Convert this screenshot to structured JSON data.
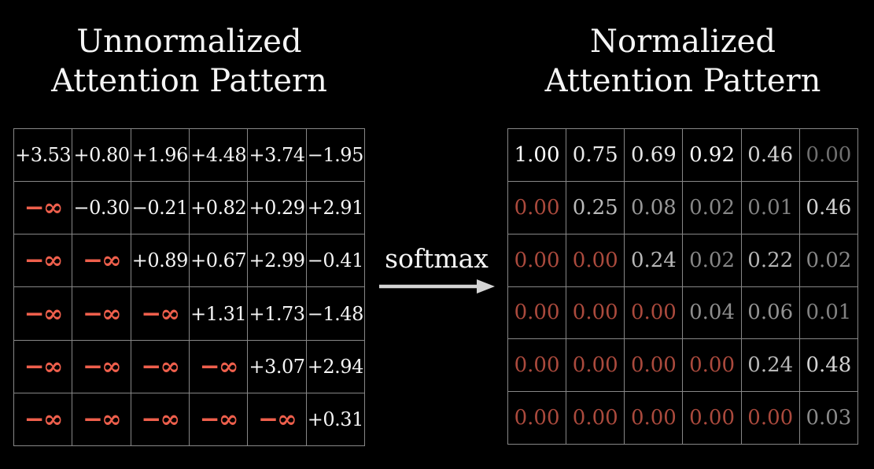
{
  "colors": {
    "background": "#000000",
    "value_text": "#f5f5f5",
    "neg_infinity_red": "#ee5f4c",
    "masked_zero_red": "#ab4a3d",
    "grid_line": "#878787",
    "arrow": "#d4d4d4"
  },
  "left_panel": {
    "title_line1": "Unnormalized",
    "title_line2": "Attention Pattern",
    "matrix": [
      [
        {
          "t": "+3.53",
          "c": "#f5f5f5"
        },
        {
          "t": "+0.80",
          "c": "#f5f5f5"
        },
        {
          "t": "+1.96",
          "c": "#f5f5f5"
        },
        {
          "t": "+4.48",
          "c": "#f5f5f5"
        },
        {
          "t": "+3.74",
          "c": "#f5f5f5"
        },
        {
          "t": "−1.95",
          "c": "#f5f5f5"
        }
      ],
      [
        {
          "t": "−∞",
          "c": "#ee5f4c",
          "inf": true
        },
        {
          "t": "−0.30",
          "c": "#f5f5f5"
        },
        {
          "t": "−0.21",
          "c": "#f5f5f5"
        },
        {
          "t": "+0.82",
          "c": "#f5f5f5"
        },
        {
          "t": "+0.29",
          "c": "#f5f5f5"
        },
        {
          "t": "+2.91",
          "c": "#f5f5f5"
        }
      ],
      [
        {
          "t": "−∞",
          "c": "#ee5f4c",
          "inf": true
        },
        {
          "t": "−∞",
          "c": "#ee5f4c",
          "inf": true
        },
        {
          "t": "+0.89",
          "c": "#f5f5f5"
        },
        {
          "t": "+0.67",
          "c": "#f5f5f5"
        },
        {
          "t": "+2.99",
          "c": "#f5f5f5"
        },
        {
          "t": "−0.41",
          "c": "#f5f5f5"
        }
      ],
      [
        {
          "t": "−∞",
          "c": "#ee5f4c",
          "inf": true
        },
        {
          "t": "−∞",
          "c": "#ee5f4c",
          "inf": true
        },
        {
          "t": "−∞",
          "c": "#ee5f4c",
          "inf": true
        },
        {
          "t": "+1.31",
          "c": "#f5f5f5"
        },
        {
          "t": "+1.73",
          "c": "#f5f5f5"
        },
        {
          "t": "−1.48",
          "c": "#f5f5f5"
        }
      ],
      [
        {
          "t": "−∞",
          "c": "#ee5f4c",
          "inf": true
        },
        {
          "t": "−∞",
          "c": "#ee5f4c",
          "inf": true
        },
        {
          "t": "−∞",
          "c": "#ee5f4c",
          "inf": true
        },
        {
          "t": "−∞",
          "c": "#ee5f4c",
          "inf": true
        },
        {
          "t": "+3.07",
          "c": "#f5f5f5"
        },
        {
          "t": "+2.94",
          "c": "#f5f5f5"
        }
      ],
      [
        {
          "t": "−∞",
          "c": "#ee5f4c",
          "inf": true
        },
        {
          "t": "−∞",
          "c": "#ee5f4c",
          "inf": true
        },
        {
          "t": "−∞",
          "c": "#ee5f4c",
          "inf": true
        },
        {
          "t": "−∞",
          "c": "#ee5f4c",
          "inf": true
        },
        {
          "t": "−∞",
          "c": "#ee5f4c",
          "inf": true
        },
        {
          "t": "+0.31",
          "c": "#f5f5f5"
        }
      ]
    ]
  },
  "softmax": {
    "label": "softmax"
  },
  "right_panel": {
    "title_line1": "Normalized",
    "title_line2": "Attention Pattern",
    "matrix": [
      [
        {
          "t": "1.00",
          "c": "#ffffff"
        },
        {
          "t": "0.75",
          "c": "#eaeaea"
        },
        {
          "t": "0.69",
          "c": "#e5e5e5"
        },
        {
          "t": "0.92",
          "c": "#f7f7f7"
        },
        {
          "t": "0.46",
          "c": "#d2d2d2"
        },
        {
          "t": "0.00",
          "c": "#6f6f6f"
        }
      ],
      [
        {
          "t": "0.00",
          "c": "#ab4a3d"
        },
        {
          "t": "0.25",
          "c": "#bababa"
        },
        {
          "t": "0.08",
          "c": "#989898"
        },
        {
          "t": "0.02",
          "c": "#878787"
        },
        {
          "t": "0.01",
          "c": "#828282"
        },
        {
          "t": "0.46",
          "c": "#d2d2d2"
        }
      ],
      [
        {
          "t": "0.00",
          "c": "#ab4a3d"
        },
        {
          "t": "0.00",
          "c": "#ab4a3d"
        },
        {
          "t": "0.24",
          "c": "#b8b8b8"
        },
        {
          "t": "0.02",
          "c": "#878787"
        },
        {
          "t": "0.22",
          "c": "#b5b5b5"
        },
        {
          "t": "0.02",
          "c": "#878787"
        }
      ],
      [
        {
          "t": "0.00",
          "c": "#ab4a3d"
        },
        {
          "t": "0.00",
          "c": "#ab4a3d"
        },
        {
          "t": "0.00",
          "c": "#ab4a3d"
        },
        {
          "t": "0.04",
          "c": "#8e8e8e"
        },
        {
          "t": "0.06",
          "c": "#939393"
        },
        {
          "t": "0.01",
          "c": "#828282"
        }
      ],
      [
        {
          "t": "0.00",
          "c": "#ab4a3d"
        },
        {
          "t": "0.00",
          "c": "#ab4a3d"
        },
        {
          "t": "0.00",
          "c": "#ab4a3d"
        },
        {
          "t": "0.00",
          "c": "#ab4a3d"
        },
        {
          "t": "0.24",
          "c": "#b8b8b8"
        },
        {
          "t": "0.48",
          "c": "#d4d4d4"
        }
      ],
      [
        {
          "t": "0.00",
          "c": "#ab4a3d"
        },
        {
          "t": "0.00",
          "c": "#ab4a3d"
        },
        {
          "t": "0.00",
          "c": "#ab4a3d"
        },
        {
          "t": "0.00",
          "c": "#ab4a3d"
        },
        {
          "t": "0.00",
          "c": "#ab4a3d"
        },
        {
          "t": "0.03",
          "c": "#8b8b8b"
        }
      ]
    ]
  }
}
